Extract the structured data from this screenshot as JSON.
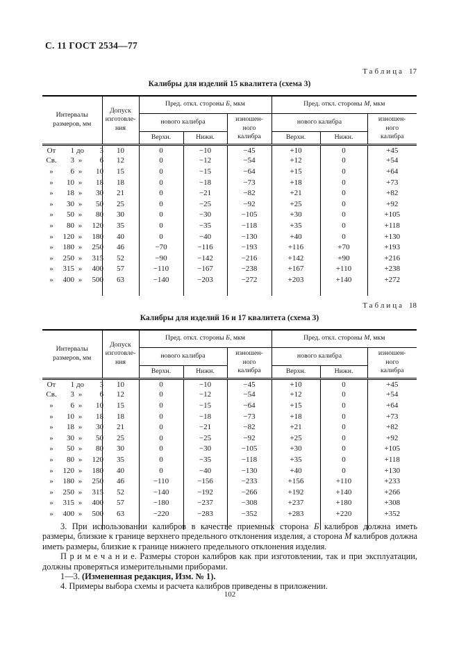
{
  "page": {
    "header": "С. 11 ГОСТ 2534—77",
    "page_number": "102"
  },
  "tables": [
    {
      "label": [
        "Таблица",
        "17"
      ],
      "title": "Калибры для изделий 15 квалитета (схема 3)",
      "headers": {
        "intervals": "Интервалы\nразмеров, мм",
        "tolerance": "Допуск\nизготовле-\nния",
        "group_b": [
          {
            "text": "Пред. откл. стороны "
          },
          {
            "text": "Б",
            "italic": true
          },
          {
            "text": ", мкм"
          }
        ],
        "group_m": [
          {
            "text": "Пред. откл. стороны "
          },
          {
            "text": "М",
            "italic": true
          },
          {
            "text": ", мкм"
          }
        ],
        "new_gauge": "нового калибра",
        "worn_gauge": "изношен-\nного\nкалибра",
        "upper": "Верхн.",
        "lower": "Нижн."
      },
      "rows": [
        {
          "interval": [
            "От",
            "1",
            "до",
            "3"
          ],
          "values": [
            "10",
            "0",
            "−10",
            "−45",
            "+10",
            "0",
            "+45"
          ]
        },
        {
          "interval": [
            "Св.",
            "3",
            "»",
            "6"
          ],
          "values": [
            "12",
            "0",
            "−12",
            "−54",
            "+12",
            "0",
            "+54"
          ]
        },
        {
          "interval": [
            "»",
            "6",
            "»",
            "10"
          ],
          "values": [
            "15",
            "0",
            "−15",
            "−64",
            "+15",
            "0",
            "+64"
          ]
        },
        {
          "interval": [
            "»",
            "10",
            "»",
            "18"
          ],
          "values": [
            "18",
            "0",
            "−18",
            "−73",
            "+18",
            "0",
            "+73"
          ]
        },
        {
          "interval": [
            "»",
            "18",
            "»",
            "30"
          ],
          "values": [
            "21",
            "0",
            "−21",
            "−82",
            "+21",
            "0",
            "+82"
          ]
        },
        {
          "interval": [
            "»",
            "30",
            "»",
            "50"
          ],
          "values": [
            "25",
            "0",
            "−25",
            "−92",
            "+25",
            "0",
            "+92"
          ]
        },
        {
          "interval": [
            "»",
            "50",
            "»",
            "80"
          ],
          "values": [
            "30",
            "0",
            "−30",
            "−105",
            "+30",
            "0",
            "+105"
          ]
        },
        {
          "interval": [
            "»",
            "80",
            "»",
            "120"
          ],
          "values": [
            "35",
            "0",
            "−35",
            "−118",
            "+35",
            "0",
            "+118"
          ]
        },
        {
          "interval": [
            "»",
            "120",
            "»",
            "180"
          ],
          "values": [
            "40",
            "0",
            "−40",
            "−130",
            "+40",
            "0",
            "+130"
          ]
        },
        {
          "interval": [
            "»",
            "180",
            "»",
            "250"
          ],
          "values": [
            "46",
            "−70",
            "−116",
            "−193",
            "+116",
            "+70",
            "+193"
          ]
        },
        {
          "interval": [
            "»",
            "250",
            "»",
            "315"
          ],
          "values": [
            "52",
            "−90",
            "−142",
            "−216",
            "+142",
            "+90",
            "+216"
          ]
        },
        {
          "interval": [
            "»",
            "315",
            "»",
            "400"
          ],
          "values": [
            "57",
            "−110",
            "−167",
            "−238",
            "+167",
            "+110",
            "+238"
          ]
        },
        {
          "interval": [
            "»",
            "400",
            "»",
            "500"
          ],
          "values": [
            "63",
            "−140",
            "−203",
            "−272",
            "+203",
            "+140",
            "+272"
          ]
        }
      ]
    },
    {
      "label": [
        "Таблица",
        "18"
      ],
      "title": "Калибры для изделий 16 и 17 квалитета (схема 3)",
      "headers": {
        "intervals": "Интервалы\nразмеров, мм",
        "tolerance": "Допуск\nизготовле-\nния",
        "group_b": [
          {
            "text": "Пред. откл. стороны "
          },
          {
            "text": "Б",
            "italic": true
          },
          {
            "text": ", мкм"
          }
        ],
        "group_m": [
          {
            "text": "Пред. откл. стороны "
          },
          {
            "text": "М",
            "italic": true
          },
          {
            "text": ", мкм"
          }
        ],
        "new_gauge": "нового калибра",
        "worn_gauge": "изношен-\nного\nкалибра",
        "upper": "Верхн.",
        "lower": "Нижн."
      },
      "rows": [
        {
          "interval": [
            "От",
            "1",
            "до",
            "3"
          ],
          "values": [
            "10",
            "0",
            "−10",
            "−45",
            "+10",
            "0",
            "+45"
          ]
        },
        {
          "interval": [
            "Св.",
            "3",
            "»",
            "6"
          ],
          "values": [
            "12",
            "0",
            "−12",
            "−54",
            "+12",
            "0",
            "+54"
          ]
        },
        {
          "interval": [
            "»",
            "6",
            "»",
            "10"
          ],
          "values": [
            "15",
            "0",
            "−15",
            "−64",
            "+15",
            "0",
            "+64"
          ]
        },
        {
          "interval": [
            "»",
            "10",
            "»",
            "18"
          ],
          "values": [
            "18",
            "0",
            "−18",
            "−73",
            "+18",
            "0",
            "+73"
          ]
        },
        {
          "interval": [
            "»",
            "18",
            "»",
            "30"
          ],
          "values": [
            "21",
            "0",
            "−21",
            "−82",
            "+21",
            "0",
            "+82"
          ]
        },
        {
          "interval": [
            "»",
            "30",
            "»",
            "50"
          ],
          "values": [
            "25",
            "0",
            "−25",
            "−92",
            "+25",
            "0",
            "+92"
          ]
        },
        {
          "interval": [
            "»",
            "50",
            "»",
            "80"
          ],
          "values": [
            "30",
            "0",
            "−30",
            "−105",
            "+30",
            "0",
            "+105"
          ]
        },
        {
          "interval": [
            "»",
            "80",
            "»",
            "120"
          ],
          "values": [
            "35",
            "0",
            "−35",
            "−118",
            "+35",
            "0",
            "+118"
          ]
        },
        {
          "interval": [
            "»",
            "120",
            "»",
            "180"
          ],
          "values": [
            "40",
            "0",
            "−40",
            "−130",
            "+40",
            "0",
            "+130"
          ]
        },
        {
          "interval": [
            "»",
            "180",
            "»",
            "250"
          ],
          "values": [
            "46",
            "−110",
            "−156",
            "−233",
            "+156",
            "+110",
            "+233"
          ]
        },
        {
          "interval": [
            "»",
            "250",
            "»",
            "315"
          ],
          "values": [
            "52",
            "−140",
            "−192",
            "−266",
            "+192",
            "+140",
            "+266"
          ]
        },
        {
          "interval": [
            "»",
            "315",
            "»",
            "400"
          ],
          "values": [
            "57",
            "−180",
            "−237",
            "−308",
            "+237",
            "+180",
            "+308"
          ]
        },
        {
          "interval": [
            "»",
            "400",
            "»",
            "500"
          ],
          "values": [
            "63",
            "−220",
            "−283",
            "−352",
            "+283",
            "+220",
            "+352"
          ]
        }
      ]
    }
  ],
  "notes": {
    "note3": [
      {
        "text": "3. При использовании калибров в качестве приемных сторона "
      },
      {
        "text": "Б",
        "italic": true
      },
      {
        "text": " калибров должна иметь размеры, близкие к границе верхнего предельного отклонения изделия, а сторона "
      },
      {
        "text": "М",
        "italic": true
      },
      {
        "text": " калибров должна иметь размеры, близкие к границе нижнего предельного отклонения изделия."
      }
    ],
    "remark": [
      {
        "text": "П р и м е ч а н и е. Размеры сторон калибров как при изготовлении, так и при эксплуатации, должны проверяться измерительными приборами."
      }
    ],
    "revision": [
      {
        "text": "1—3. "
      },
      {
        "text": "(Измененная редакция, Изм. № 1).",
        "bold": true
      }
    ],
    "note4": "4. Примеры выбора схемы и расчета калибров приведены в приложении."
  }
}
